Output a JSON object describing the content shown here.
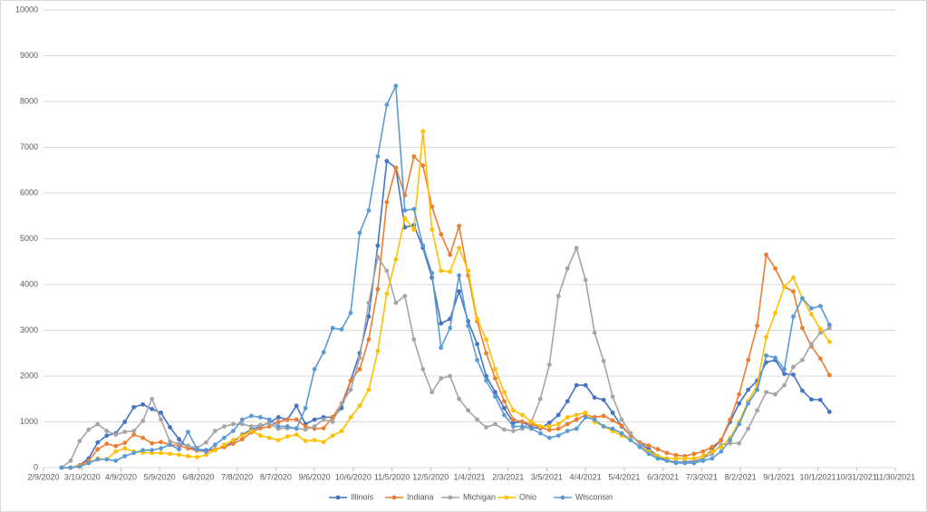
{
  "chart_data": {
    "type": "line",
    "x": [
      "2/23/2020",
      "3/1/2020",
      "3/8/2020",
      "3/15/2020",
      "3/22/2020",
      "3/29/2020",
      "4/5/2020",
      "4/12/2020",
      "4/19/2020",
      "4/26/2020",
      "5/3/2020",
      "5/10/2020",
      "5/17/2020",
      "5/24/2020",
      "5/31/2020",
      "6/7/2020",
      "6/14/2020",
      "6/21/2020",
      "6/28/2020",
      "7/5/2020",
      "7/12/2020",
      "7/19/2020",
      "7/26/2020",
      "8/2/2020",
      "8/9/2020",
      "8/16/2020",
      "8/23/2020",
      "8/30/2020",
      "9/6/2020",
      "9/13/2020",
      "9/20/2020",
      "9/27/2020",
      "10/4/2020",
      "10/11/2020",
      "10/18/2020",
      "10/25/2020",
      "11/1/2020",
      "11/8/2020",
      "11/15/2020",
      "11/22/2020",
      "11/29/2020",
      "12/6/2020",
      "12/13/2020",
      "12/20/2020",
      "12/27/2020",
      "1/3/2021",
      "1/10/2021",
      "1/17/2021",
      "1/24/2021",
      "1/31/2021",
      "2/7/2021",
      "2/14/2021",
      "2/21/2021",
      "2/28/2021",
      "3/7/2021",
      "3/14/2021",
      "3/21/2021",
      "3/28/2021",
      "4/4/2021",
      "4/11/2021",
      "4/18/2021",
      "4/25/2021",
      "5/2/2021",
      "5/9/2021",
      "5/16/2021",
      "5/23/2021",
      "5/30/2021",
      "6/6/2021",
      "6/13/2021",
      "6/20/2021",
      "6/27/2021",
      "7/4/2021",
      "7/11/2021",
      "7/18/2021",
      "7/25/2021",
      "8/1/2021",
      "8/8/2021",
      "8/15/2021",
      "8/22/2021",
      "8/29/2021",
      "9/5/2021",
      "9/12/2021",
      "9/19/2021",
      "9/26/2021",
      "10/3/2021",
      "10/10/2021"
    ],
    "series": [
      {
        "name": "Illinois",
        "color": "#4472c4",
        "values": [
          0,
          0,
          50,
          200,
          550,
          700,
          750,
          1000,
          1320,
          1380,
          1280,
          1200,
          880,
          620,
          430,
          400,
          380,
          400,
          450,
          560,
          720,
          830,
          900,
          980,
          1100,
          1050,
          1350,
          950,
          1050,
          1100,
          1100,
          1300,
          1900,
          2500,
          3300,
          4850,
          6700,
          6550,
          5250,
          5300,
          4800,
          4150,
          3150,
          3250,
          3850,
          3200,
          2700,
          2000,
          1650,
          1300,
          980,
          1000,
          880,
          860,
          980,
          1150,
          1450,
          1800,
          1800,
          1530,
          1480,
          1200,
          900,
          700,
          550,
          400,
          250,
          160,
          120,
          120,
          130,
          200,
          400,
          600,
          1000,
          1400,
          1700,
          1900,
          2300,
          2350,
          2050,
          2030,
          1680,
          1490,
          1480,
          1220
        ]
      },
      {
        "name": "Indiana",
        "color": "#ed7d31",
        "values": [
          0,
          0,
          50,
          150,
          400,
          520,
          470,
          540,
          720,
          650,
          530,
          560,
          500,
          480,
          420,
          370,
          350,
          400,
          450,
          520,
          620,
          770,
          860,
          900,
          1000,
          1050,
          1050,
          900,
          850,
          860,
          1100,
          1400,
          1900,
          2150,
          2800,
          3900,
          5800,
          6550,
          5950,
          6800,
          6600,
          5700,
          5100,
          4650,
          5280,
          4200,
          3200,
          2500,
          1950,
          1450,
          1050,
          1000,
          950,
          880,
          820,
          850,
          950,
          1050,
          1150,
          1100,
          1130,
          1030,
          920,
          700,
          550,
          480,
          400,
          320,
          270,
          250,
          300,
          350,
          450,
          600,
          1050,
          1600,
          2350,
          3100,
          4650,
          4350,
          3950,
          3850,
          3050,
          2650,
          2380,
          2020
        ]
      },
      {
        "name": "Michigan",
        "color": "#a5a5a5",
        "values": [
          0,
          150,
          580,
          830,
          950,
          800,
          720,
          780,
          800,
          1020,
          1500,
          1050,
          570,
          520,
          480,
          430,
          550,
          800,
          900,
          950,
          950,
          900,
          930,
          960,
          850,
          860,
          860,
          830,
          900,
          1050,
          1000,
          1400,
          1700,
          2400,
          3600,
          4600,
          4300,
          3600,
          3750,
          2800,
          2150,
          1650,
          1950,
          2000,
          1500,
          1250,
          1050,
          880,
          950,
          830,
          800,
          850,
          1000,
          1500,
          2250,
          3750,
          4350,
          4800,
          4100,
          2950,
          2330,
          1550,
          1050,
          750,
          500,
          350,
          200,
          150,
          130,
          130,
          150,
          200,
          300,
          500,
          530,
          530,
          850,
          1250,
          1650,
          1600,
          1800,
          2200,
          2350,
          2700,
          2950,
          3050
        ]
      },
      {
        "name": "Ohio",
        "color": "#ffc000",
        "values": [
          0,
          0,
          30,
          100,
          200,
          180,
          350,
          420,
          350,
          330,
          320,
          320,
          300,
          280,
          250,
          230,
          280,
          380,
          500,
          600,
          700,
          800,
          700,
          650,
          600,
          680,
          720,
          580,
          600,
          560,
          700,
          800,
          1100,
          1350,
          1700,
          2550,
          3800,
          4550,
          5450,
          5200,
          7350,
          5200,
          4300,
          4280,
          4800,
          4300,
          3250,
          2800,
          2150,
          1650,
          1250,
          1150,
          1000,
          900,
          900,
          950,
          1100,
          1150,
          1200,
          1000,
          900,
          800,
          700,
          600,
          450,
          350,
          250,
          200,
          200,
          200,
          200,
          250,
          350,
          450,
          650,
          1000,
          1450,
          1800,
          2850,
          3380,
          3950,
          4150,
          3700,
          3350,
          3030,
          2750
        ]
      },
      {
        "name": "Wisconsin",
        "color": "#5b9bd5",
        "values": [
          0,
          0,
          20,
          100,
          180,
          180,
          150,
          250,
          320,
          380,
          380,
          420,
          500,
          400,
          780,
          400,
          350,
          500,
          650,
          800,
          1050,
          1130,
          1100,
          1050,
          900,
          900,
          850,
          1300,
          2150,
          2520,
          3050,
          3020,
          3380,
          5130,
          5620,
          6800,
          7930,
          8340,
          5620,
          5650,
          4850,
          4250,
          2620,
          3050,
          4200,
          3100,
          2350,
          1900,
          1550,
          1150,
          900,
          900,
          850,
          750,
          650,
          700,
          800,
          850,
          1100,
          1050,
          900,
          850,
          750,
          600,
          450,
          300,
          200,
          150,
          100,
          100,
          100,
          150,
          200,
          350,
          600,
          950,
          1400,
          1700,
          2450,
          2400,
          2150,
          3300,
          3700,
          3480,
          3530,
          3120
        ]
      }
    ],
    "xlim": [
      "2/9/2020",
      "11/30/2021"
    ],
    "xticks": [
      "2/9/2020",
      "3/10/2020",
      "4/9/2020",
      "5/9/2020",
      "6/8/2020",
      "7/8/2020",
      "8/7/2020",
      "9/6/2020",
      "10/6/2020",
      "11/5/2020",
      "12/5/2020",
      "1/4/2021",
      "2/3/2021",
      "3/5/2021",
      "4/4/2021",
      "5/4/2021",
      "6/3/2021",
      "7/3/2021",
      "8/2/2021",
      "9/1/2021",
      "10/1/2021",
      "10/31/2021",
      "11/30/2021"
    ],
    "ylim": [
      0,
      10000
    ],
    "yticks": [
      0,
      1000,
      2000,
      3000,
      4000,
      5000,
      6000,
      7000,
      8000,
      9000,
      10000
    ],
    "grid": true,
    "legend": "bottom"
  }
}
